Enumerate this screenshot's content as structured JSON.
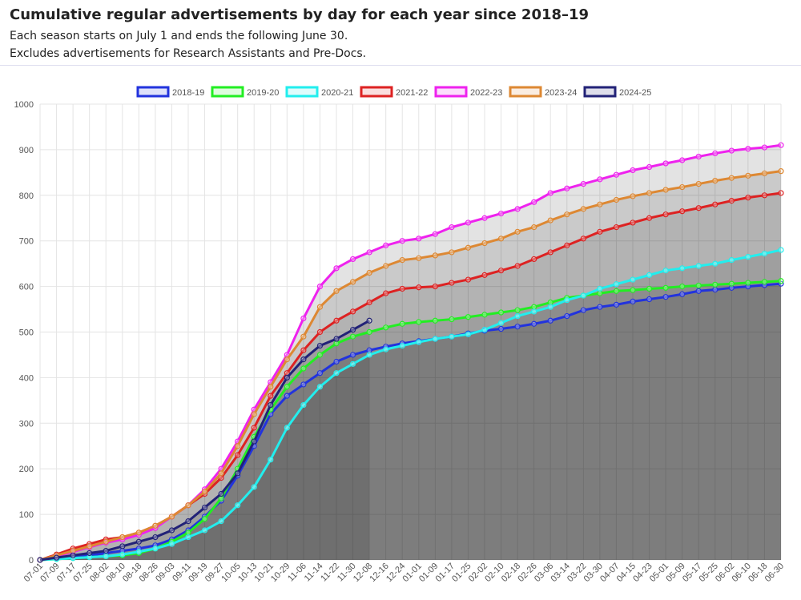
{
  "chart_data": {
    "type": "line",
    "title": "Cumulative regular advertisements by day for each year since 2018–19",
    "subtitle": [
      "Each season starts on July 1 and ends the following June 30.",
      "Excludes advertisements for Research Assistants and Pre-Docs."
    ],
    "categories": [
      "07-01",
      "07-09",
      "07-17",
      "07-25",
      "08-02",
      "08-10",
      "08-18",
      "08-26",
      "09-03",
      "09-11",
      "09-19",
      "09-27",
      "10-05",
      "10-13",
      "10-21",
      "10-29",
      "11-06",
      "11-14",
      "11-22",
      "11-30",
      "12-08",
      "12-16",
      "12-24",
      "01-01",
      "01-09",
      "01-17",
      "01-25",
      "02-02",
      "02-10",
      "02-18",
      "02-26",
      "03-06",
      "03-14",
      "03-22",
      "03-30",
      "04-07",
      "04-15",
      "04-23",
      "05-01",
      "05-09",
      "05-17",
      "05-25",
      "06-02",
      "06-10",
      "06-18",
      "06-30"
    ],
    "series": [
      {
        "name": "2018-19",
        "color": "#2233dd",
        "values": [
          0,
          3,
          6,
          10,
          15,
          20,
          25,
          32,
          45,
          65,
          95,
          130,
          185,
          250,
          320,
          360,
          385,
          410,
          435,
          450,
          460,
          468,
          475,
          480,
          485,
          490,
          497,
          503,
          507,
          512,
          518,
          525,
          535,
          548,
          555,
          560,
          567,
          572,
          577,
          583,
          590,
          593,
          597,
          600,
          603,
          606
        ]
      },
      {
        "name": "2019-20",
        "color": "#22ee22",
        "values": [
          0,
          2,
          4,
          6,
          8,
          10,
          15,
          25,
          40,
          60,
          90,
          135,
          200,
          270,
          330,
          380,
          420,
          450,
          475,
          490,
          500,
          510,
          518,
          522,
          525,
          528,
          533,
          538,
          543,
          548,
          555,
          565,
          575,
          580,
          585,
          590,
          592,
          595,
          597,
          600,
          602,
          604,
          606,
          608,
          610,
          612
        ]
      },
      {
        "name": "2020-21",
        "color": "#22eeee",
        "values": [
          0,
          2,
          4,
          6,
          8,
          12,
          18,
          25,
          35,
          50,
          65,
          85,
          120,
          160,
          220,
          290,
          340,
          380,
          410,
          430,
          450,
          462,
          470,
          478,
          485,
          490,
          495,
          505,
          520,
          535,
          545,
          555,
          570,
          580,
          595,
          605,
          615,
          625,
          635,
          640,
          645,
          650,
          658,
          665,
          672,
          680
        ]
      },
      {
        "name": "2021-22",
        "color": "#dd2222",
        "values": [
          0,
          12,
          25,
          35,
          45,
          50,
          60,
          75,
          95,
          120,
          145,
          180,
          230,
          290,
          360,
          410,
          460,
          500,
          525,
          545,
          565,
          585,
          595,
          598,
          600,
          608,
          615,
          625,
          635,
          645,
          660,
          675,
          690,
          705,
          720,
          730,
          740,
          750,
          758,
          765,
          772,
          780,
          788,
          795,
          800,
          805
        ]
      },
      {
        "name": "2022-23",
        "color": "#ee22ee",
        "values": [
          0,
          8,
          18,
          28,
          38,
          45,
          55,
          70,
          95,
          120,
          155,
          200,
          260,
          330,
          390,
          450,
          530,
          600,
          640,
          660,
          675,
          690,
          700,
          705,
          715,
          730,
          740,
          750,
          760,
          770,
          785,
          805,
          815,
          825,
          835,
          845,
          855,
          862,
          870,
          877,
          885,
          892,
          898,
          902,
          905,
          910
        ]
      },
      {
        "name": "2023-24",
        "color": "#dd8833",
        "values": [
          0,
          10,
          20,
          30,
          40,
          50,
          60,
          75,
          95,
          120,
          150,
          190,
          250,
          320,
          380,
          440,
          490,
          555,
          590,
          610,
          630,
          645,
          658,
          662,
          668,
          675,
          685,
          695,
          705,
          720,
          730,
          745,
          758,
          770,
          780,
          790,
          798,
          805,
          812,
          818,
          825,
          832,
          838,
          843,
          848,
          853
        ]
      },
      {
        "name": "2024-25",
        "color": "#222277",
        "values": [
          0,
          5,
          10,
          15,
          20,
          30,
          40,
          50,
          65,
          85,
          115,
          145,
          190,
          260,
          340,
          400,
          440,
          470,
          485,
          505,
          525,
          null,
          null,
          null,
          null,
          null,
          null,
          null,
          null,
          null,
          null,
          null,
          null,
          null,
          null,
          null,
          null,
          null,
          null,
          null,
          null,
          null,
          null,
          null,
          null,
          null
        ]
      }
    ],
    "ylim": [
      0,
      1000
    ],
    "yticks": [
      0,
      100,
      200,
      300,
      400,
      500,
      600,
      700,
      800,
      900,
      1000
    ],
    "grid": true,
    "legend": "top",
    "fill": true
  }
}
